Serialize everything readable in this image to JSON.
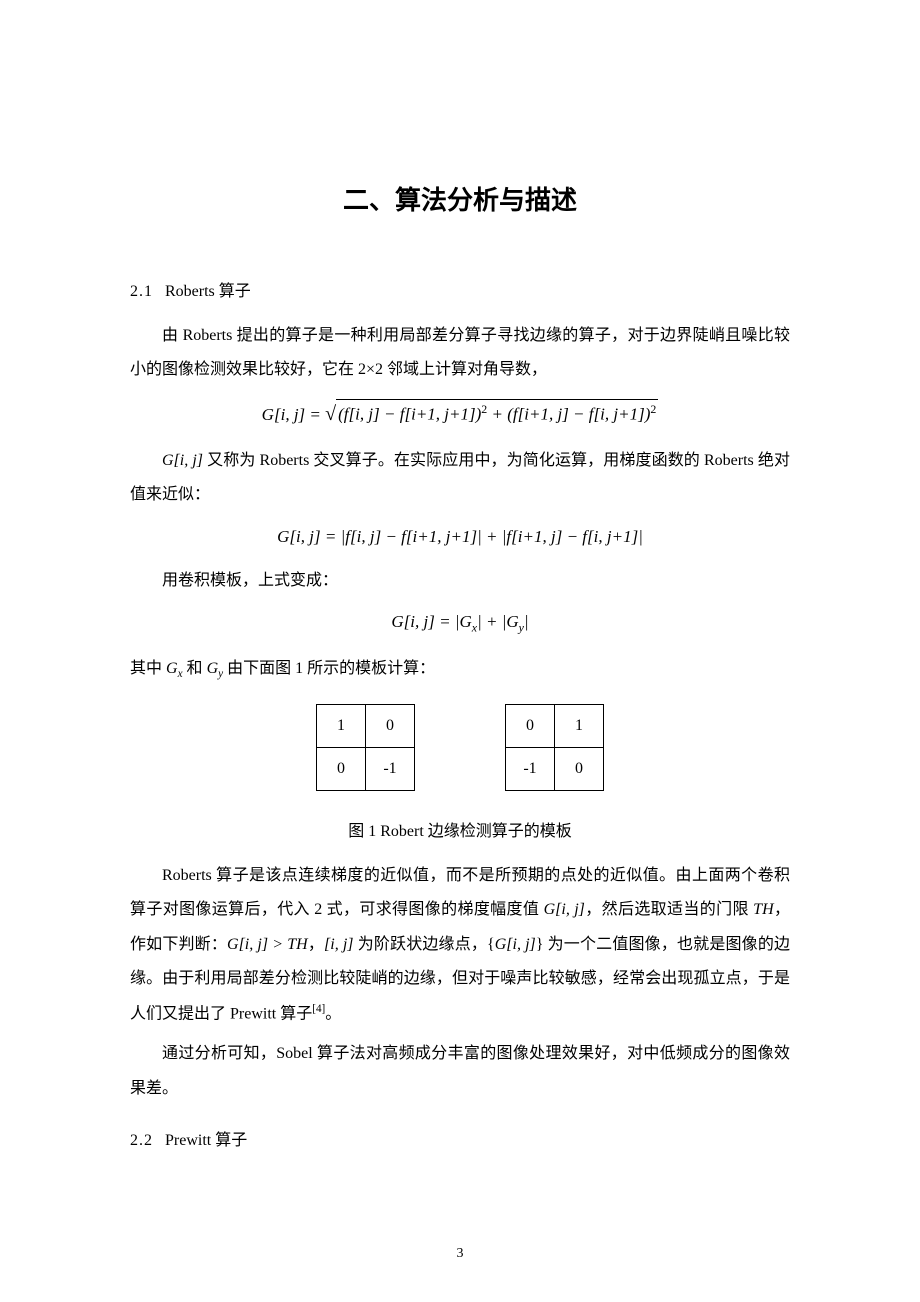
{
  "title": "二、算法分析与描述",
  "section21": {
    "num": "2.1",
    "name": "Roberts 算子"
  },
  "p1": "由 Roberts 提出的算子是一种利用局部差分算子寻找边缘的算子，对于边界陡峭且噪比较小的图像检测效果比较好，它在 2×2 邻域上计算对角导数，",
  "formula1": "G[i, j] = √((f[i, j] − f[i+1, j+1])² + (f[i+1, j] − f[i, j+1])²)",
  "p2_a": "G[i, j]",
  "p2_b": " 又称为 Roberts 交叉算子。在实际应用中，为简化运算，用梯度函数的 Roberts 绝对值来近似：",
  "formula2": "G[i, j] = |f[i, j] − f[i+1, j+1]| + |f[i+1, j] − f[i, j+1]|",
  "p3": "用卷积模板，上式变成：",
  "formula3": "G[i, j] = |Gₓ| + |Gᵧ|",
  "p4_a": "其中 ",
  "p4_gx": "Gₓ",
  "p4_b": " 和 ",
  "p4_gy": "Gᵧ",
  "p4_c": " 由下面图 1 所示的模板计算：",
  "kernel1": [
    [
      "1",
      "0"
    ],
    [
      "0",
      "-1"
    ]
  ],
  "kernel2": [
    [
      "0",
      "1"
    ],
    [
      "-1",
      "0"
    ]
  ],
  "caption1": "图 1 Robert 边缘检测算子的模板",
  "p5_a": "Roberts 算子是该点连续梯度的近似值，而不是所预期的点处的近似值。由上面两个卷积算子对图像运算后，代入 2 式，可求得图像的梯度幅度值 ",
  "p5_g": "G[i, j]",
  "p5_b": "，然后选取适当的门限 ",
  "p5_th": "TH",
  "p5_c": "，作如下判断：",
  "p5_cond": "G[i, j] > TH",
  "p5_d": "，",
  "p5_ij": "[i, j]",
  "p5_e": " 为阶跃状边缘点，{",
  "p5_g2": "G[i, j]",
  "p5_f": "} 为一个二值图像，也就是图像的边缘。由于利用局部差分检测比较陡峭的边缘，但对于噪声比较敏感，经常会出现孤立点，于是人们又提出了 Prewitt 算子",
  "p5_ref": "[4]",
  "p5_h": "。",
  "p6": "通过分析可知，Sobel 算子法对高频成分丰富的图像处理效果好，对中低频成分的图像效果差。",
  "section22": {
    "num": "2.2",
    "name": "Prewitt 算子"
  },
  "pageNumber": "3"
}
